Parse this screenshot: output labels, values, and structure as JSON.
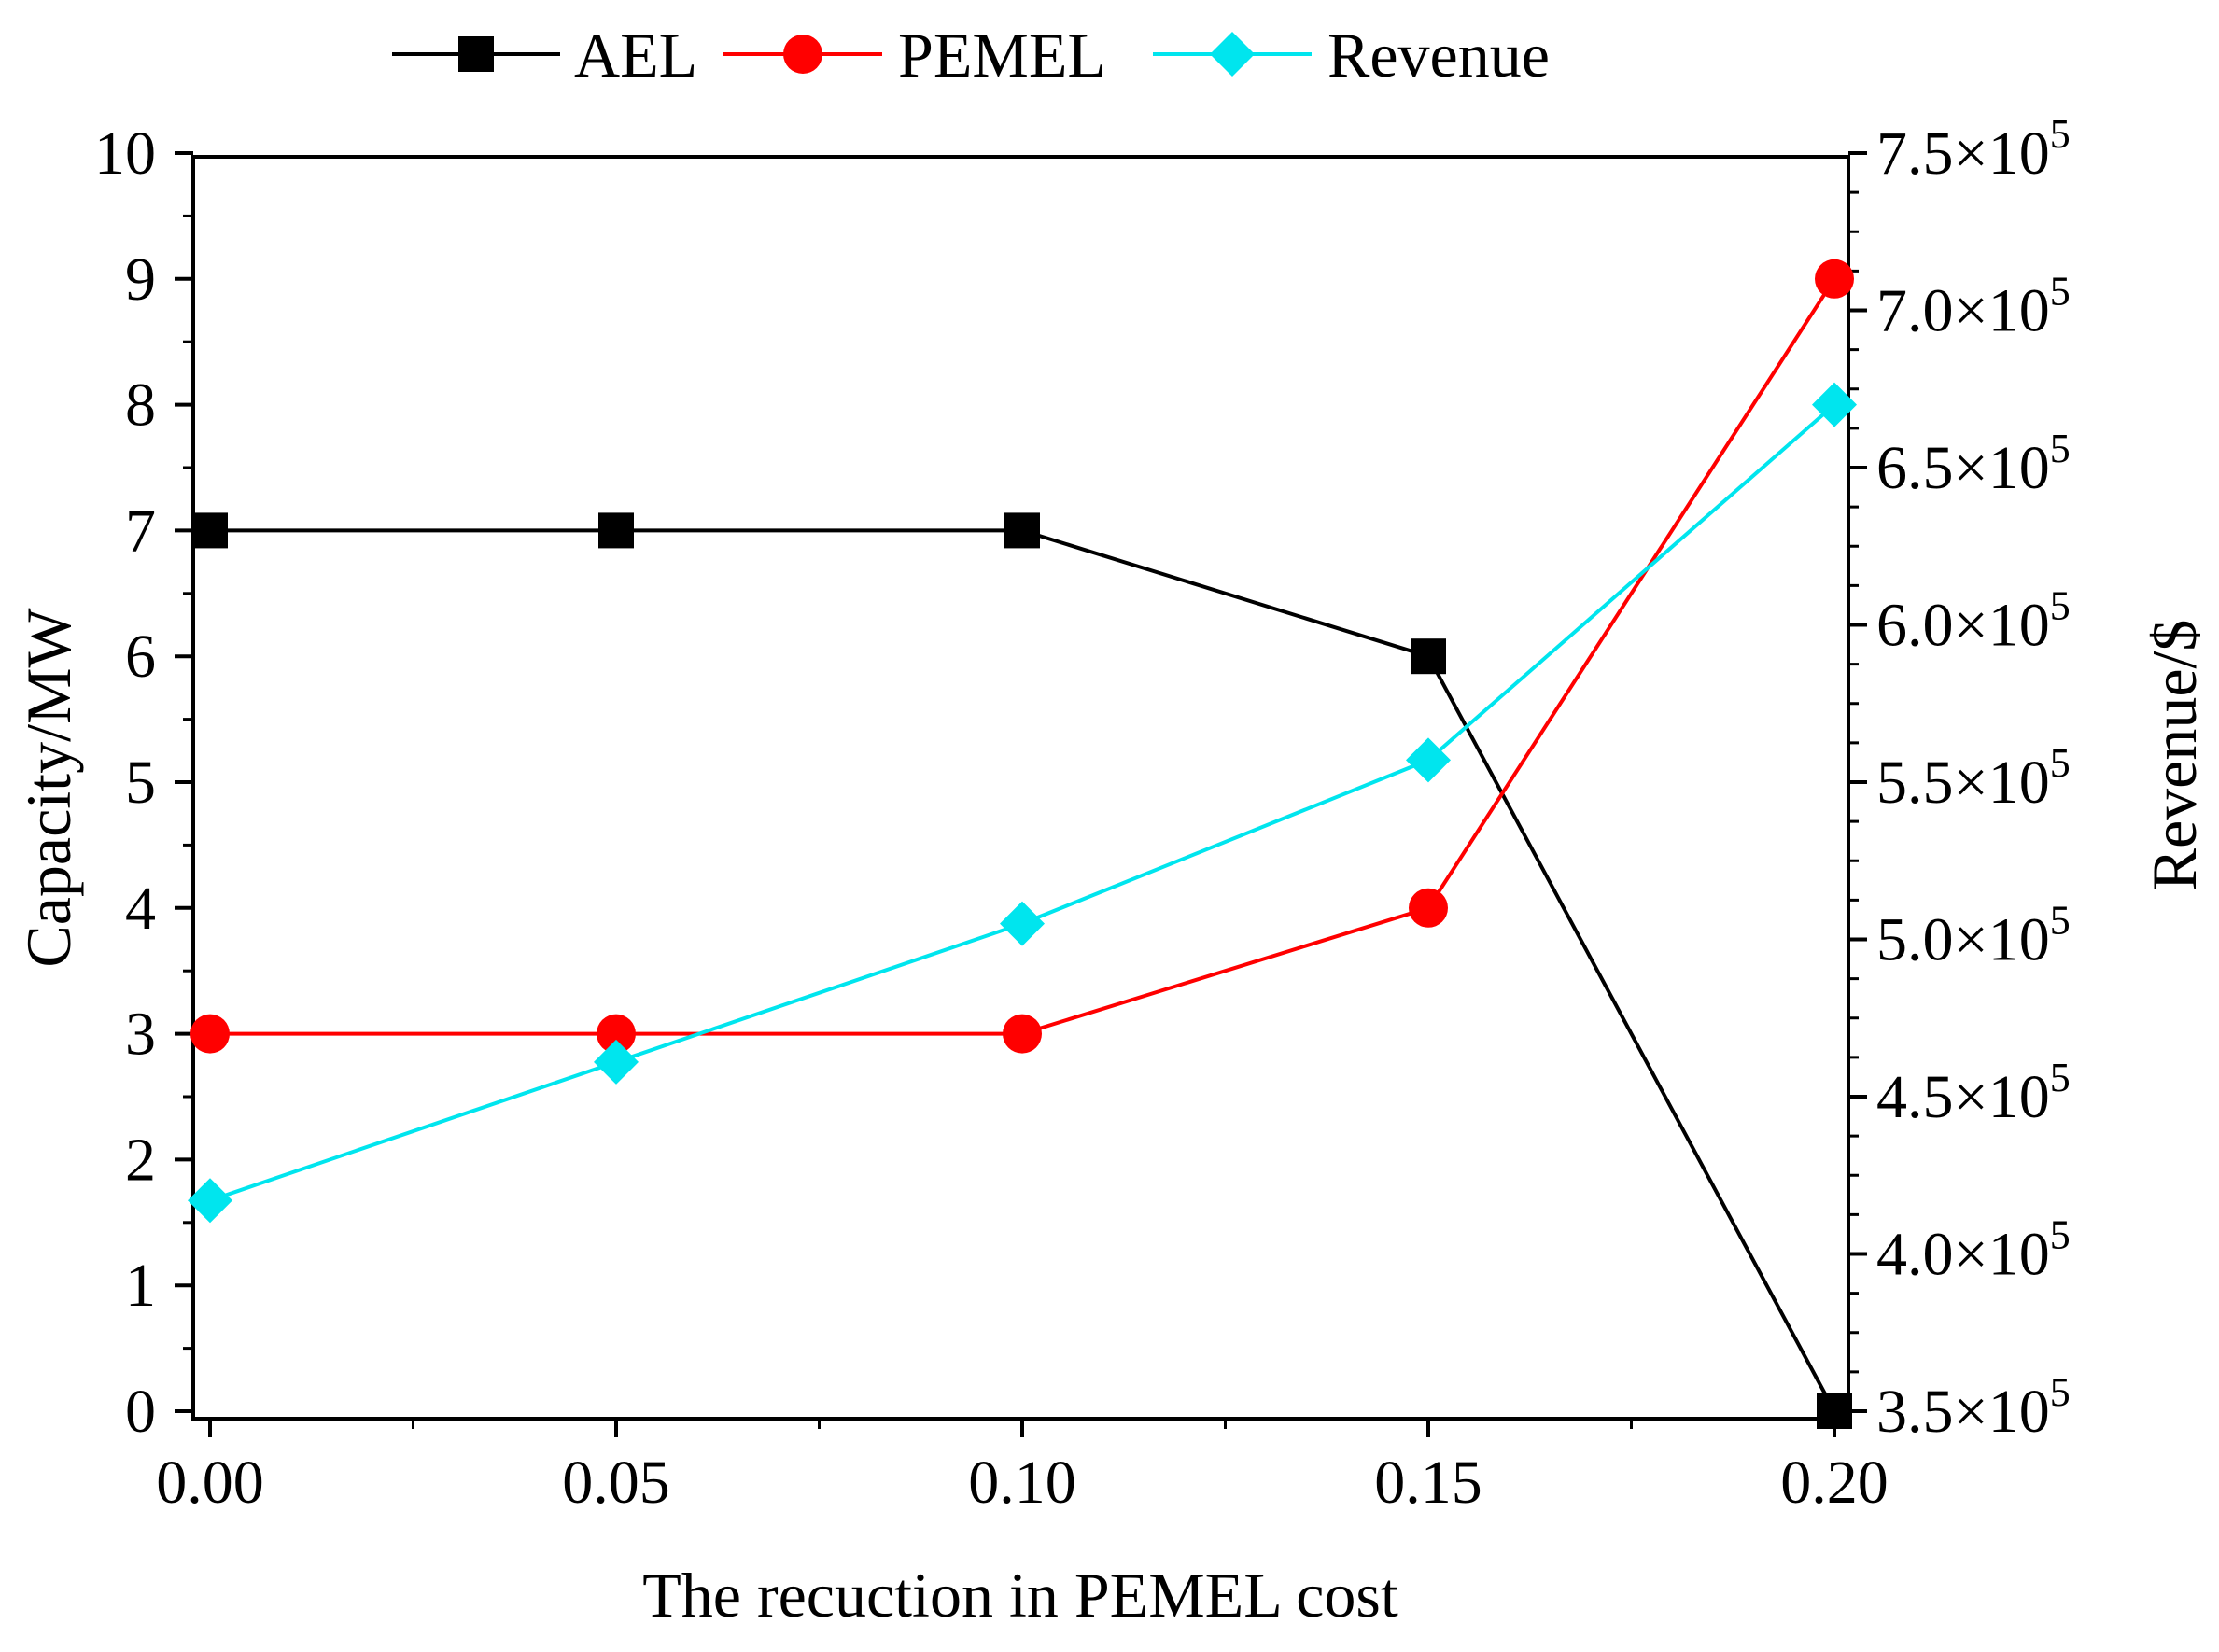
{
  "chart_data": {
    "type": "line",
    "x": [
      0.0,
      0.05,
      0.1,
      0.15,
      0.2
    ],
    "x_tick_labels": [
      "0.00",
      "0.05",
      "0.10",
      "0.15",
      "0.20"
    ],
    "xlabel": "The recuction in PEMEL cost",
    "xlim": [
      0.0,
      0.2
    ],
    "ylabel_left": "Capacity/MW",
    "ylim_left": [
      0,
      10
    ],
    "y_ticks_left": [
      "0",
      "1",
      "2",
      "3",
      "4",
      "5",
      "6",
      "7",
      "8",
      "9",
      "10"
    ],
    "ylabel_right": "Revenue/$",
    "ylim_right": [
      350000,
      750000
    ],
    "y_ticks_right": [
      {
        "mantissa": "3.5",
        "times": "×10",
        "exp": "5",
        "value": 350000
      },
      {
        "mantissa": "4.0",
        "times": "×10",
        "exp": "5",
        "value": 400000
      },
      {
        "mantissa": "4.5",
        "times": "×10",
        "exp": "5",
        "value": 450000
      },
      {
        "mantissa": "5.0",
        "times": "×10",
        "exp": "5",
        "value": 500000
      },
      {
        "mantissa": "5.5",
        "times": "×10",
        "exp": "5",
        "value": 550000
      },
      {
        "mantissa": "6.0",
        "times": "×10",
        "exp": "5",
        "value": 600000
      },
      {
        "mantissa": "6.5",
        "times": "×10",
        "exp": "5",
        "value": 650000
      },
      {
        "mantissa": "7.0",
        "times": "×10",
        "exp": "5",
        "value": 700000
      },
      {
        "mantissa": "7.5",
        "times": "×10",
        "exp": "5",
        "value": 750000
      }
    ],
    "series": [
      {
        "name": "AEL",
        "axis": "left",
        "marker": "square",
        "color": "#000000",
        "values": [
          7,
          7,
          7,
          6,
          0
        ]
      },
      {
        "name": "PEMEL",
        "axis": "left",
        "marker": "circle",
        "color": "#ff0000",
        "values": [
          3,
          3,
          3,
          4,
          9
        ]
      },
      {
        "name": "Revenue",
        "axis": "right",
        "marker": "diamond",
        "color": "#00e5ee",
        "values": [
          417000,
          461000,
          505000,
          557000,
          670000
        ]
      }
    ],
    "legend_position": "top-center",
    "grid": false
  }
}
